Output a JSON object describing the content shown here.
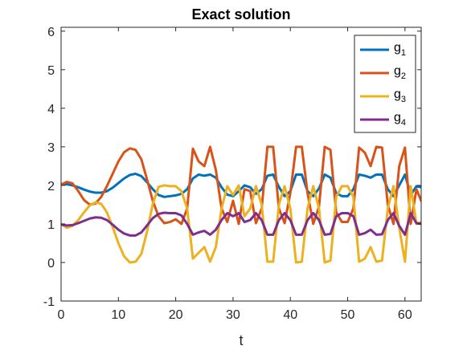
{
  "chart_data": {
    "type": "line",
    "title": "Exact solution",
    "xlabel": "t",
    "ylabel": "",
    "xlim": [
      0,
      62.83
    ],
    "ylim": [
      -1,
      6.1
    ],
    "xticks": [
      "0",
      "10",
      "20",
      "30",
      "40",
      "50",
      "60"
    ],
    "xtick_values": [
      0,
      10,
      20,
      30,
      40,
      50,
      60
    ],
    "yticks": [
      "-1",
      "0",
      "1",
      "2",
      "3",
      "4",
      "5",
      "6"
    ],
    "ytick_values": [
      -1,
      0,
      1,
      2,
      3,
      4,
      5,
      6
    ],
    "grid": false,
    "legend_position": "top-right",
    "series": [
      {
        "name": "g",
        "sub": "1",
        "color": "#0072BD",
        "x": [
          0,
          1,
          2,
          3,
          4,
          5,
          6,
          7,
          8,
          9,
          10,
          11,
          12,
          13,
          14,
          15,
          16,
          17,
          18,
          19,
          20,
          21,
          22,
          23,
          24,
          25,
          26,
          27,
          28,
          29,
          30,
          31,
          32,
          33,
          34,
          35,
          36,
          37,
          38,
          39,
          40,
          41,
          42,
          43,
          44,
          45,
          46,
          47,
          48,
          49,
          50,
          51,
          52,
          53,
          54,
          55,
          56,
          57,
          58,
          59,
          60,
          61,
          62,
          62.83
        ],
        "y": [
          2.02,
          2.03,
          2.0,
          1.95,
          1.89,
          1.84,
          1.81,
          1.81,
          1.85,
          1.94,
          2.06,
          2.18,
          2.27,
          2.3,
          2.24,
          2.08,
          1.9,
          1.75,
          1.7,
          1.72,
          1.74,
          1.78,
          1.9,
          2.18,
          2.28,
          2.25,
          2.28,
          2.2,
          1.95,
          1.76,
          1.72,
          1.85,
          2.0,
          1.95,
          1.78,
          1.9,
          2.25,
          2.28,
          1.96,
          1.72,
          1.85,
          2.28,
          2.28,
          1.85,
          1.72,
          1.92,
          2.28,
          2.2,
          1.8,
          1.72,
          1.72,
          1.9,
          2.28,
          2.25,
          2.2,
          2.28,
          2.28,
          1.9,
          1.72,
          2.0,
          2.28,
          1.75,
          1.98,
          1.95
        ]
      },
      {
        "name": "g",
        "sub": "2",
        "color": "#D95319",
        "x": [
          0,
          1,
          2,
          3,
          4,
          5,
          6,
          7,
          8,
          9,
          10,
          11,
          12,
          13,
          14,
          15,
          16,
          17,
          18,
          19,
          20,
          21,
          22,
          23,
          24,
          25,
          26,
          27,
          28,
          29,
          30,
          31,
          32,
          33,
          34,
          35,
          36,
          37,
          38,
          39,
          40,
          41,
          42,
          43,
          44,
          45,
          46,
          47,
          48,
          49,
          50,
          51,
          52,
          53,
          54,
          55,
          56,
          57,
          58,
          59,
          60,
          61,
          62,
          62.83
        ],
        "y": [
          2.02,
          2.09,
          2.05,
          1.85,
          1.62,
          1.5,
          1.53,
          1.7,
          1.98,
          2.3,
          2.62,
          2.86,
          2.96,
          2.92,
          2.68,
          2.15,
          1.6,
          1.2,
          1.02,
          1.05,
          1.12,
          1.0,
          1.4,
          2.95,
          2.62,
          2.5,
          3.0,
          2.4,
          1.4,
          1.05,
          1.6,
          1.0,
          1.9,
          1.85,
          1.02,
          1.4,
          3.0,
          3.0,
          1.4,
          1.02,
          1.8,
          3.0,
          3.0,
          1.8,
          1.0,
          1.45,
          3.0,
          2.92,
          1.3,
          1.05,
          1.05,
          1.4,
          2.98,
          2.85,
          2.5,
          3.0,
          2.98,
          1.5,
          1.0,
          2.5,
          2.98,
          1.0,
          1.9,
          1.6
        ]
      },
      {
        "name": "g",
        "sub": "3",
        "color": "#EDB120",
        "x": [
          0,
          1,
          2,
          3,
          4,
          5,
          6,
          7,
          8,
          9,
          10,
          11,
          12,
          13,
          14,
          15,
          16,
          17,
          18,
          19,
          20,
          21,
          22,
          23,
          24,
          25,
          26,
          27,
          28,
          29,
          30,
          31,
          32,
          33,
          34,
          35,
          36,
          37,
          38,
          39,
          40,
          41,
          42,
          43,
          44,
          45,
          46,
          47,
          48,
          49,
          50,
          51,
          52,
          53,
          54,
          55,
          56,
          57,
          58,
          59,
          60,
          61,
          62,
          62.83
        ],
        "y": [
          1.0,
          0.9,
          0.95,
          1.1,
          1.3,
          1.48,
          1.56,
          1.52,
          1.3,
          0.92,
          0.5,
          0.16,
          0.0,
          0.02,
          0.22,
          0.8,
          1.52,
          1.96,
          2.0,
          1.98,
          1.98,
          1.85,
          1.4,
          0.1,
          0.25,
          0.4,
          0.02,
          0.4,
          1.4,
          1.98,
          1.75,
          2.0,
          1.2,
          1.4,
          1.98,
          1.5,
          0.02,
          0.02,
          1.5,
          1.98,
          1.4,
          0.0,
          0.02,
          1.4,
          1.98,
          1.4,
          0.0,
          0.05,
          1.7,
          1.98,
          1.98,
          1.7,
          0.02,
          0.1,
          0.4,
          0.02,
          0.05,
          1.4,
          1.98,
          0.9,
          0.02,
          1.98,
          1.0,
          1.05
        ]
      },
      {
        "name": "g",
        "sub": "4",
        "color": "#7E2F8E",
        "x": [
          0,
          1,
          2,
          3,
          4,
          5,
          6,
          7,
          8,
          9,
          10,
          11,
          12,
          13,
          14,
          15,
          16,
          17,
          18,
          19,
          20,
          21,
          22,
          23,
          24,
          25,
          26,
          27,
          28,
          29,
          30,
          31,
          32,
          33,
          34,
          35,
          36,
          37,
          38,
          39,
          40,
          41,
          42,
          43,
          44,
          45,
          46,
          47,
          48,
          49,
          50,
          51,
          52,
          53,
          54,
          55,
          56,
          57,
          58,
          59,
          60,
          61,
          62,
          62.83
        ],
        "y": [
          0.98,
          0.96,
          0.97,
          1.02,
          1.08,
          1.14,
          1.17,
          1.16,
          1.1,
          0.98,
          0.85,
          0.75,
          0.7,
          0.7,
          0.78,
          0.96,
          1.15,
          1.26,
          1.29,
          1.28,
          1.28,
          1.22,
          1.0,
          0.72,
          0.78,
          0.82,
          0.72,
          0.85,
          1.1,
          1.28,
          1.2,
          1.28,
          1.05,
          1.1,
          1.28,
          1.1,
          0.72,
          0.72,
          1.1,
          1.28,
          1.1,
          0.72,
          0.72,
          1.1,
          1.28,
          1.1,
          0.72,
          0.74,
          1.2,
          1.28,
          1.28,
          1.2,
          0.72,
          0.76,
          0.85,
          0.72,
          0.73,
          1.1,
          1.28,
          0.95,
          0.72,
          1.28,
          1.02,
          1.0
        ]
      }
    ]
  }
}
